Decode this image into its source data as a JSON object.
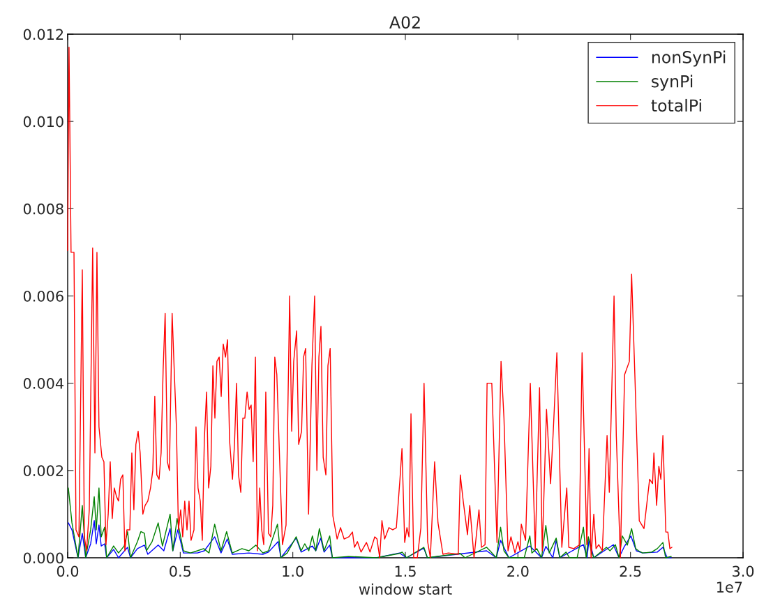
{
  "chart_data": {
    "type": "line",
    "title": "A02",
    "xlabel": "window start",
    "annotations": [
      "1e7"
    ],
    "xlim": [
      0,
      3
    ],
    "xticks": [
      {
        "value": 0,
        "label": "0.0"
      },
      {
        "value": 0.5,
        "label": "0.5"
      },
      {
        "value": 1,
        "label": "1.0"
      },
      {
        "value": 1.5,
        "label": "1.5"
      },
      {
        "value": 2,
        "label": "2.0"
      },
      {
        "value": 2.5,
        "label": "2.5"
      },
      {
        "value": 3,
        "label": "3.0"
      }
    ],
    "ylim": [
      0,
      0.012
    ],
    "yticks": [
      {
        "value": 0,
        "label": "0.000"
      },
      {
        "value": 0.002,
        "label": "0.002"
      },
      {
        "value": 0.004,
        "label": "0.004"
      },
      {
        "value": 0.006,
        "label": "0.006"
      },
      {
        "value": 0.008,
        "label": "0.008"
      },
      {
        "value": 0.01,
        "label": "0.010"
      },
      {
        "value": 0.012,
        "label": "0.012"
      }
    ],
    "grid": false,
    "legend": "top right",
    "line_style": "solid",
    "marker": "none",
    "series": [
      {
        "name": "nonSynPi",
        "color": "#0000ff",
        "x": [
          0.003,
          0.019,
          0.046,
          0.065,
          0.08,
          0.102,
          0.118,
          0.127,
          0.139,
          0.149,
          0.164,
          0.173,
          0.204,
          0.226,
          0.266,
          0.279,
          0.31,
          0.341,
          0.356,
          0.402,
          0.427,
          0.455,
          0.467,
          0.489,
          0.514,
          0.576,
          0.607,
          0.653,
          0.681,
          0.709,
          0.731,
          0.805,
          0.867,
          0.892,
          0.935,
          0.947,
          1.015,
          1.037,
          1.087,
          1.102,
          1.124,
          1.139,
          1.164,
          1.176,
          1.372,
          1.474,
          1.505,
          1.582,
          1.598,
          1.861,
          1.904,
          1.923,
          1.96,
          2.053,
          2.105,
          2.124,
          2.155,
          2.17,
          2.186,
          2.291,
          2.307,
          2.316,
          2.337,
          2.424,
          2.449,
          2.471,
          2.502,
          2.526,
          2.554,
          2.619,
          2.644,
          2.663,
          2.681
        ],
        "values": [
          0.0008,
          0.00064,
          0,
          0.00056,
          0,
          0.00032,
          0.00085,
          0.00032,
          0.00075,
          0.00027,
          0.00032,
          0,
          0.00019,
          0,
          0.00024,
          0,
          0.00021,
          0.00029,
          8e-05,
          0.00029,
          0.00016,
          0.00067,
          0.00016,
          0.00064,
          0.00011,
          0.00011,
          0.00016,
          0.00048,
          0.00011,
          0.00043,
          8e-05,
          0.00011,
          8e-05,
          0.00013,
          0.00037,
          0,
          0.00045,
          0.00013,
          0.00027,
          0.00016,
          0.00045,
          0.00013,
          0.00029,
          0,
          0,
          0.00011,
          0,
          0.00022,
          0,
          0.00016,
          0,
          0.0004,
          0,
          0.00027,
          0,
          0.00026,
          0,
          0.0004,
          0,
          0.0003,
          0,
          0.00043,
          0,
          0.0003,
          0,
          0.00024,
          0.0005,
          0.00016,
          0.00011,
          0.00013,
          0.00024,
          0,
          0
        ]
      },
      {
        "name": "synPi",
        "color": "#008000",
        "x": [
          0.003,
          0.019,
          0.046,
          0.065,
          0.08,
          0.102,
          0.118,
          0.127,
          0.139,
          0.149,
          0.164,
          0.173,
          0.204,
          0.226,
          0.251,
          0.266,
          0.279,
          0.31,
          0.325,
          0.341,
          0.35,
          0.375,
          0.402,
          0.421,
          0.455,
          0.467,
          0.486,
          0.514,
          0.545,
          0.576,
          0.604,
          0.628,
          0.653,
          0.681,
          0.706,
          0.731,
          0.774,
          0.805,
          0.836,
          0.867,
          0.892,
          0.932,
          0.947,
          0.975,
          1.015,
          1.037,
          1.053,
          1.071,
          1.087,
          1.102,
          1.118,
          1.139,
          1.164,
          1.176,
          1.248,
          1.372,
          1.474,
          1.486,
          1.505,
          1.582,
          1.598,
          1.743,
          1.765,
          1.861,
          1.876,
          1.904,
          1.923,
          1.938,
          1.96,
          2.028,
          2.053,
          2.062,
          2.084,
          2.105,
          2.124,
          2.139,
          2.17,
          2.186,
          2.214,
          2.229,
          2.263,
          2.291,
          2.303,
          2.313,
          2.325,
          2.337,
          2.393,
          2.409,
          2.433,
          2.449,
          2.464,
          2.486,
          2.505,
          2.523,
          2.536,
          2.554,
          2.594,
          2.619,
          2.644,
          2.656,
          2.681
        ],
        "values": [
          0.0016,
          0.0008,
          0,
          0.0012,
          0,
          0.00064,
          0.0014,
          0.00064,
          0.0016,
          0.00048,
          0.0007,
          0,
          0.00027,
          0.00011,
          0.00027,
          0.0006,
          0,
          0.00037,
          0.0006,
          0.00056,
          0.00016,
          0.00037,
          0.0008,
          0.00027,
          0.001,
          0.00016,
          0.0009,
          0.00016,
          0.00011,
          0.00016,
          0.00021,
          0.00011,
          0.00077,
          0.00016,
          0.0006,
          0.00011,
          0.00021,
          0.00016,
          0.00029,
          0.00011,
          0.00016,
          0.00077,
          0,
          0.00011,
          0.00048,
          0.00016,
          0.00032,
          0.00016,
          0.0005,
          0.00016,
          0.00067,
          0.00016,
          0.0005,
          0,
          3e-05,
          0,
          0.0001,
          0.00013,
          0,
          0.00024,
          0,
          0.0001,
          0,
          0.00024,
          0.00016,
          0,
          0.0007,
          0.00016,
          0,
          0,
          0.0005,
          0.00011,
          0.00021,
          0,
          0.00074,
          0.00011,
          0.00045,
          0,
          0.00013,
          0,
          0,
          0.0007,
          0,
          0.00048,
          0.00016,
          0,
          0.00024,
          0.00016,
          0.0003,
          0,
          0.0005,
          0.00029,
          0.00067,
          0.00021,
          0.00016,
          0.00011,
          0.00013,
          0.00021,
          0.00035,
          0,
          3e-05
        ]
      },
      {
        "name": "totalPi",
        "color": "#ff0000",
        "x": [
          0,
          0.006,
          0.015,
          0.028,
          0.037,
          0.05,
          0.065,
          0.074,
          0.084,
          0.096,
          0.111,
          0.121,
          0.13,
          0.139,
          0.152,
          0.161,
          0.17,
          0.18,
          0.189,
          0.198,
          0.207,
          0.217,
          0.226,
          0.235,
          0.245,
          0.254,
          0.263,
          0.276,
          0.285,
          0.294,
          0.303,
          0.313,
          0.322,
          0.334,
          0.344,
          0.356,
          0.368,
          0.378,
          0.387,
          0.396,
          0.406,
          0.415,
          0.424,
          0.433,
          0.443,
          0.452,
          0.464,
          0.474,
          0.483,
          0.492,
          0.502,
          0.511,
          0.52,
          0.53,
          0.539,
          0.548,
          0.561,
          0.57,
          0.579,
          0.589,
          0.598,
          0.607,
          0.617,
          0.626,
          0.636,
          0.645,
          0.654,
          0.663,
          0.673,
          0.682,
          0.691,
          0.701,
          0.71,
          0.719,
          0.732,
          0.741,
          0.75,
          0.759,
          0.769,
          0.778,
          0.787,
          0.797,
          0.806,
          0.815,
          0.824,
          0.834,
          0.843,
          0.853,
          0.862,
          0.871,
          0.88,
          0.892,
          0.902,
          0.911,
          0.92,
          0.929,
          0.954,
          0.97,
          0.986,
          0.995,
          1.004,
          1.017,
          1.026,
          1.039,
          1.048,
          1.057,
          1.07,
          1.085,
          1.097,
          1.107,
          1.116,
          1.125,
          1.135,
          1.147,
          1.156,
          1.166,
          1.178,
          1.197,
          1.212,
          1.228,
          1.249,
          1.265,
          1.274,
          1.287,
          1.303,
          1.327,
          1.343,
          1.364,
          1.374,
          1.386,
          1.396,
          1.408,
          1.427,
          1.444,
          1.46,
          1.476,
          1.485,
          1.497,
          1.507,
          1.516,
          1.525,
          1.537,
          1.553,
          1.569,
          1.583,
          1.599,
          1.611,
          1.63,
          1.645,
          1.667,
          1.691,
          1.735,
          1.744,
          1.757,
          1.776,
          1.786,
          1.805,
          1.827,
          1.838,
          1.854,
          1.863,
          1.876,
          1.884,
          1.907,
          1.925,
          1.938,
          1.956,
          1.969,
          1.987,
          2.0,
          2.009,
          2.015,
          2.034,
          2.055,
          2.077,
          2.096,
          2.108,
          2.127,
          2.145,
          2.157,
          2.173,
          2.195,
          2.217,
          2.226,
          2.248,
          2.272,
          2.285,
          2.306,
          2.316,
          2.325,
          2.337,
          2.347,
          2.359,
          2.375,
          2.396,
          2.406,
          2.427,
          2.437,
          2.455,
          2.474,
          2.495,
          2.505,
          2.52,
          2.539,
          2.56,
          2.585,
          2.598,
          2.604,
          2.616,
          2.626,
          2.635,
          2.644,
          2.657,
          2.666,
          2.675,
          2.684
        ],
        "values": [
          0.00704,
          0.0117,
          0.007,
          0.007,
          0.00064,
          0.00048,
          0.0066,
          0.00048,
          0.00016,
          0.0011,
          0.0071,
          0.0024,
          0.007,
          0.003,
          0.0023,
          0.0022,
          0.0003,
          0.001,
          0.0022,
          0.0009,
          0.0016,
          0.0014,
          0.0013,
          0.0018,
          0.0019,
          0.00016,
          0.00064,
          0.00064,
          0.0024,
          0.0011,
          0.0026,
          0.0029,
          0.0024,
          0.001,
          0.0012,
          0.0013,
          0.0016,
          0.002,
          0.0037,
          0.0019,
          0.0018,
          0.0024,
          0.0043,
          0.0056,
          0.0022,
          0.002,
          0.0056,
          0.0042,
          0.003,
          0.00064,
          0.0011,
          0.00048,
          0.0013,
          0.00064,
          0.0013,
          0.0004,
          0.00064,
          0.003,
          0.0016,
          0.0013,
          0.0004,
          0.0027,
          0.0038,
          0.0016,
          0.0021,
          0.0044,
          0.0032,
          0.0045,
          0.0046,
          0.0037,
          0.0049,
          0.0046,
          0.005,
          0.0027,
          0.0018,
          0.0026,
          0.004,
          0.0019,
          0.0015,
          0.0032,
          0.0032,
          0.0038,
          0.0034,
          0.0035,
          0.0022,
          0.0046,
          0.00016,
          0.0016,
          0.00064,
          0.0003,
          0.0038,
          0.00056,
          0.00048,
          0.0012,
          0.0046,
          0.0042,
          0.0003,
          0.00075,
          0.006,
          0.0029,
          0.0045,
          0.0052,
          0.0026,
          0.0029,
          0.0046,
          0.0048,
          0.001,
          0.0044,
          0.006,
          0.002,
          0.0046,
          0.0053,
          0.0023,
          0.0019,
          0.0044,
          0.0048,
          0.00096,
          0.00043,
          0.00069,
          0.00043,
          0.00048,
          0.00059,
          0.00024,
          0.00037,
          0.00013,
          0.00035,
          0.00013,
          0.00048,
          0.00043,
          0,
          0.00085,
          0.00043,
          0.00069,
          0.00064,
          0.00069,
          0.0018,
          0.0025,
          0.00035,
          0.00069,
          0.00048,
          0.0033,
          0,
          0,
          0.00069,
          0.004,
          0.00037,
          0,
          0.0022,
          0.0008,
          8e-05,
          0.00011,
          8e-05,
          0.0019,
          0.0013,
          0.00053,
          0.0012,
          0,
          0.0011,
          0.00024,
          0.0003,
          0.004,
          0.004,
          0.004,
          0.00035,
          0.0045,
          0.0032,
          0.00016,
          0.00048,
          0.00011,
          0.00037,
          0.00016,
          0.00077,
          0.0004,
          0.004,
          0.00019,
          0.0039,
          0.00016,
          0.0034,
          0.0017,
          0.0029,
          0.0047,
          0.00024,
          0.0016,
          0.00024,
          0.00021,
          0.00029,
          0.0047,
          0.0003,
          0.0025,
          0,
          0.001,
          0.00021,
          0.0003,
          0.00016,
          0.0028,
          0.0015,
          0.006,
          0.0028,
          0,
          0.0042,
          0.0045,
          0.0065,
          0.0041,
          0.00085,
          0.00067,
          0.0018,
          0.0017,
          0.0024,
          0.0012,
          0.0021,
          0.0018,
          0.0028,
          0.00059,
          0.00059,
          0.00021,
          0.00024
        ]
      }
    ]
  }
}
